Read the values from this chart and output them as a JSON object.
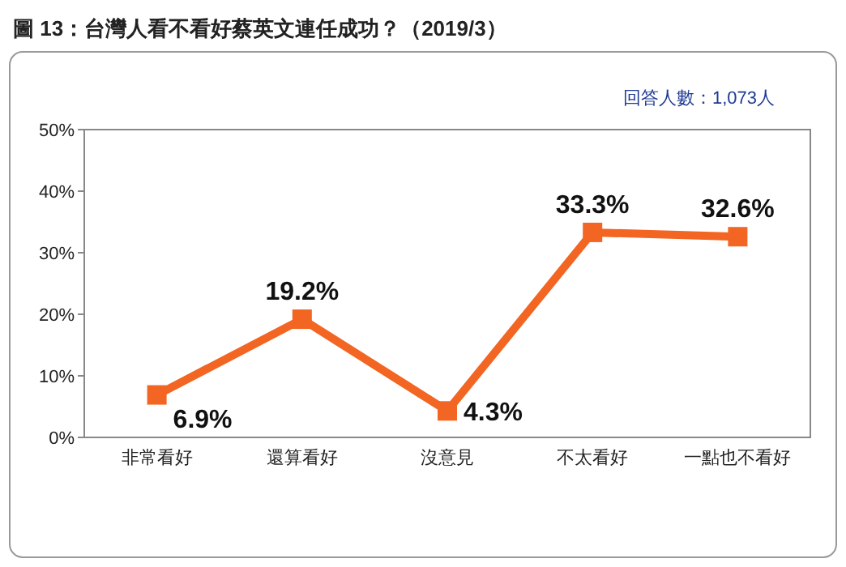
{
  "chart_data": {
    "type": "line",
    "title": "圖 13：台灣人看不看好蔡英文連任成功？（2019/3）",
    "annotations": [
      "回答人數：1,073人"
    ],
    "categories": [
      "非常看好",
      "還算看好",
      "沒意見",
      "不太看好",
      "一點也不看好"
    ],
    "series": [
      {
        "color": "#f26522",
        "values": [
          6.9,
          19.2,
          4.3,
          33.3,
          32.6
        ]
      }
    ],
    "value_labels": [
      "6.9%",
      "19.2%",
      "4.3%",
      "33.3%",
      "32.6%"
    ],
    "ylim": [
      0,
      50
    ],
    "yticks": [
      {
        "value": 0,
        "label": "0%"
      },
      {
        "value": 10,
        "label": "10%"
      },
      {
        "value": 20,
        "label": "20%"
      },
      {
        "value": 30,
        "label": "30%"
      },
      {
        "value": 40,
        "label": "40%"
      },
      {
        "value": 50,
        "label": "50%"
      }
    ],
    "marker": "square",
    "line_style": "solid",
    "grid": false
  }
}
